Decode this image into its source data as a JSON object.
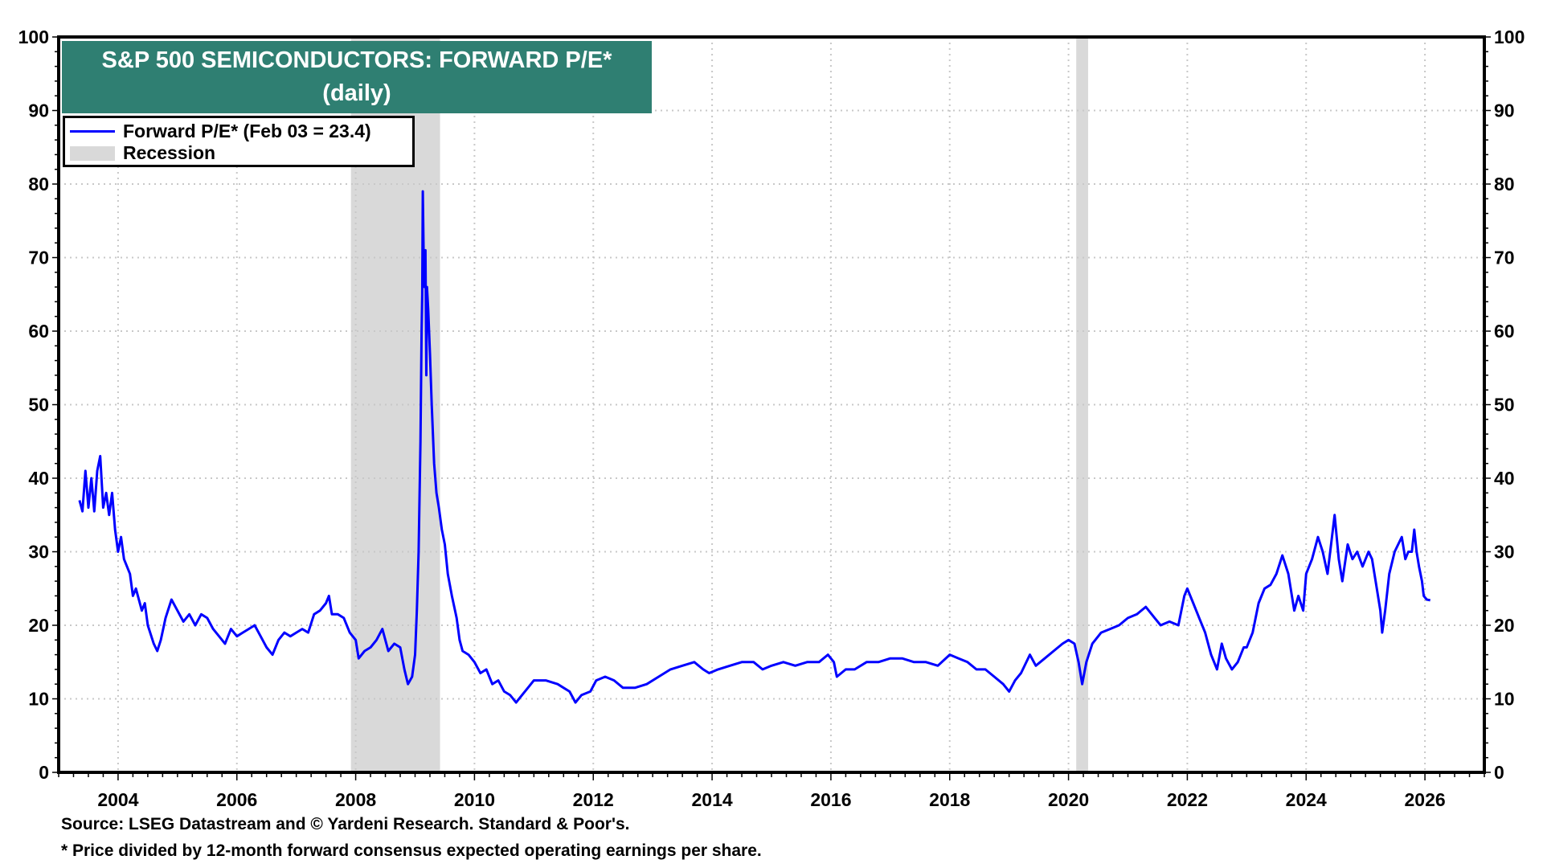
{
  "chart_data": {
    "type": "line",
    "title": "S&P 500 SEMICONDUCTORS: FORWARD P/E*",
    "subtitle": "(daily)",
    "xlabel": "",
    "ylabel": "",
    "xlim": [
      2003.0,
      2027.0
    ],
    "ylim": [
      0,
      100
    ],
    "x_ticks": [
      2004,
      2006,
      2008,
      2010,
      2012,
      2014,
      2016,
      2018,
      2020,
      2022,
      2024,
      2026
    ],
    "x_tick_labels": [
      "2004",
      "2006",
      "2008",
      "2010",
      "2012",
      "2014",
      "2016",
      "2018",
      "2020",
      "2022",
      "2024",
      "2026"
    ],
    "y_ticks": [
      0,
      10,
      20,
      30,
      40,
      50,
      60,
      70,
      80,
      90,
      100
    ],
    "y_tick_labels": [
      "0",
      "10",
      "20",
      "30",
      "40",
      "50",
      "60",
      "70",
      "80",
      "90",
      "100"
    ],
    "grid": true,
    "legend_position": "top-left",
    "legend": [
      {
        "label": "Forward P/E* (Feb 03 = 23.4)",
        "type": "line",
        "color": "#0000ff"
      },
      {
        "label": "Recession",
        "type": "band",
        "color": "#d9d9d9"
      }
    ],
    "recessions": [
      [
        2007.92,
        2009.42
      ],
      [
        2020.13,
        2020.33
      ]
    ],
    "series": [
      {
        "name": "Forward P/E*",
        "color": "#0000ff",
        "points": [
          [
            2003.35,
            37
          ],
          [
            2003.4,
            35.5
          ],
          [
            2003.45,
            41
          ],
          [
            2003.5,
            36
          ],
          [
            2003.55,
            40
          ],
          [
            2003.6,
            35.5
          ],
          [
            2003.65,
            41
          ],
          [
            2003.7,
            43
          ],
          [
            2003.75,
            36
          ],
          [
            2003.8,
            38
          ],
          [
            2003.85,
            35
          ],
          [
            2003.9,
            38
          ],
          [
            2003.95,
            33
          ],
          [
            2004.0,
            30
          ],
          [
            2004.05,
            32
          ],
          [
            2004.1,
            29
          ],
          [
            2004.2,
            27
          ],
          [
            2004.25,
            24
          ],
          [
            2004.3,
            25
          ],
          [
            2004.4,
            22
          ],
          [
            2004.45,
            23
          ],
          [
            2004.5,
            20
          ],
          [
            2004.6,
            17.5
          ],
          [
            2004.66,
            16.5
          ],
          [
            2004.72,
            18
          ],
          [
            2004.8,
            21
          ],
          [
            2004.9,
            23.5
          ],
          [
            2005.0,
            22
          ],
          [
            2005.1,
            20.5
          ],
          [
            2005.2,
            21.5
          ],
          [
            2005.3,
            20
          ],
          [
            2005.4,
            21.5
          ],
          [
            2005.5,
            21
          ],
          [
            2005.6,
            19.5
          ],
          [
            2005.7,
            18.5
          ],
          [
            2005.8,
            17.5
          ],
          [
            2005.9,
            19.5
          ],
          [
            2006.0,
            18.5
          ],
          [
            2006.1,
            19
          ],
          [
            2006.2,
            19.5
          ],
          [
            2006.3,
            20
          ],
          [
            2006.4,
            18.5
          ],
          [
            2006.5,
            17
          ],
          [
            2006.6,
            16
          ],
          [
            2006.7,
            18
          ],
          [
            2006.8,
            19
          ],
          [
            2006.9,
            18.5
          ],
          [
            2007.0,
            19
          ],
          [
            2007.1,
            19.5
          ],
          [
            2007.2,
            19
          ],
          [
            2007.3,
            21.5
          ],
          [
            2007.4,
            22
          ],
          [
            2007.5,
            23
          ],
          [
            2007.55,
            24
          ],
          [
            2007.6,
            21.5
          ],
          [
            2007.7,
            21.5
          ],
          [
            2007.8,
            21
          ],
          [
            2007.9,
            19
          ],
          [
            2008.0,
            18
          ],
          [
            2008.05,
            15.5
          ],
          [
            2008.15,
            16.5
          ],
          [
            2008.25,
            17
          ],
          [
            2008.35,
            18
          ],
          [
            2008.45,
            19.5
          ],
          [
            2008.55,
            16.5
          ],
          [
            2008.65,
            17.5
          ],
          [
            2008.75,
            17
          ],
          [
            2008.82,
            14
          ],
          [
            2008.88,
            12
          ],
          [
            2008.95,
            13
          ],
          [
            2009.0,
            16
          ],
          [
            2009.03,
            22
          ],
          [
            2009.06,
            30
          ],
          [
            2009.09,
            45
          ],
          [
            2009.11,
            60
          ],
          [
            2009.12,
            65
          ],
          [
            2009.13,
            79
          ],
          [
            2009.145,
            70
          ],
          [
            2009.16,
            66
          ],
          [
            2009.175,
            71
          ],
          [
            2009.19,
            54
          ],
          [
            2009.2,
            66
          ],
          [
            2009.22,
            63
          ],
          [
            2009.25,
            57
          ],
          [
            2009.28,
            50
          ],
          [
            2009.32,
            42
          ],
          [
            2009.36,
            38
          ],
          [
            2009.4,
            36
          ],
          [
            2009.45,
            33
          ],
          [
            2009.5,
            31
          ],
          [
            2009.55,
            27
          ],
          [
            2009.62,
            24
          ],
          [
            2009.7,
            21
          ],
          [
            2009.75,
            18
          ],
          [
            2009.8,
            16.5
          ],
          [
            2009.9,
            16
          ],
          [
            2010.0,
            15
          ],
          [
            2010.1,
            13.5
          ],
          [
            2010.2,
            14
          ],
          [
            2010.3,
            12
          ],
          [
            2010.4,
            12.5
          ],
          [
            2010.5,
            11
          ],
          [
            2010.6,
            10.5
          ],
          [
            2010.7,
            9.5
          ],
          [
            2010.8,
            10.5
          ],
          [
            2010.9,
            11.5
          ],
          [
            2011.0,
            12.5
          ],
          [
            2011.2,
            12.5
          ],
          [
            2011.4,
            12
          ],
          [
            2011.5,
            11.5
          ],
          [
            2011.6,
            11
          ],
          [
            2011.7,
            9.5
          ],
          [
            2011.8,
            10.5
          ],
          [
            2011.95,
            11
          ],
          [
            2012.05,
            12.5
          ],
          [
            2012.2,
            13
          ],
          [
            2012.35,
            12.5
          ],
          [
            2012.5,
            11.5
          ],
          [
            2012.7,
            11.5
          ],
          [
            2012.9,
            12
          ],
          [
            2013.1,
            13
          ],
          [
            2013.3,
            14
          ],
          [
            2013.5,
            14.5
          ],
          [
            2013.7,
            15
          ],
          [
            2013.85,
            14
          ],
          [
            2013.95,
            13.5
          ],
          [
            2014.1,
            14
          ],
          [
            2014.3,
            14.5
          ],
          [
            2014.5,
            15
          ],
          [
            2014.7,
            15
          ],
          [
            2014.85,
            14
          ],
          [
            2015.0,
            14.5
          ],
          [
            2015.2,
            15
          ],
          [
            2015.4,
            14.5
          ],
          [
            2015.6,
            15
          ],
          [
            2015.8,
            15
          ],
          [
            2015.95,
            16
          ],
          [
            2016.05,
            15
          ],
          [
            2016.1,
            13
          ],
          [
            2016.25,
            14
          ],
          [
            2016.4,
            14
          ],
          [
            2016.6,
            15
          ],
          [
            2016.8,
            15
          ],
          [
            2017.0,
            15.5
          ],
          [
            2017.2,
            15.5
          ],
          [
            2017.4,
            15
          ],
          [
            2017.6,
            15
          ],
          [
            2017.8,
            14.5
          ],
          [
            2018.0,
            16
          ],
          [
            2018.15,
            15.5
          ],
          [
            2018.3,
            15
          ],
          [
            2018.45,
            14
          ],
          [
            2018.6,
            14
          ],
          [
            2018.75,
            13
          ],
          [
            2018.9,
            12
          ],
          [
            2019.0,
            11
          ],
          [
            2019.1,
            12.5
          ],
          [
            2019.2,
            13.5
          ],
          [
            2019.35,
            16
          ],
          [
            2019.45,
            14.5
          ],
          [
            2019.6,
            15.5
          ],
          [
            2019.75,
            16.5
          ],
          [
            2019.9,
            17.5
          ],
          [
            2020.0,
            18
          ],
          [
            2020.1,
            17.5
          ],
          [
            2020.17,
            15
          ],
          [
            2020.23,
            12
          ],
          [
            2020.3,
            15
          ],
          [
            2020.4,
            17.5
          ],
          [
            2020.55,
            19
          ],
          [
            2020.7,
            19.5
          ],
          [
            2020.85,
            20
          ],
          [
            2021.0,
            21
          ],
          [
            2021.15,
            21.5
          ],
          [
            2021.3,
            22.5
          ],
          [
            2021.45,
            21
          ],
          [
            2021.55,
            20
          ],
          [
            2021.7,
            20.5
          ],
          [
            2021.85,
            20
          ],
          [
            2021.95,
            24
          ],
          [
            2022.0,
            25
          ],
          [
            2022.1,
            23
          ],
          [
            2022.2,
            21
          ],
          [
            2022.3,
            19
          ],
          [
            2022.4,
            16
          ],
          [
            2022.5,
            14
          ],
          [
            2022.58,
            17.5
          ],
          [
            2022.65,
            15.5
          ],
          [
            2022.75,
            14
          ],
          [
            2022.85,
            15
          ],
          [
            2022.95,
            17
          ],
          [
            2023.0,
            17
          ],
          [
            2023.1,
            19
          ],
          [
            2023.2,
            23
          ],
          [
            2023.3,
            25
          ],
          [
            2023.4,
            25.5
          ],
          [
            2023.5,
            27
          ],
          [
            2023.6,
            29.5
          ],
          [
            2023.7,
            27
          ],
          [
            2023.8,
            22
          ],
          [
            2023.87,
            24
          ],
          [
            2023.95,
            22
          ],
          [
            2024.0,
            27
          ],
          [
            2024.1,
            29
          ],
          [
            2024.2,
            32
          ],
          [
            2024.28,
            30
          ],
          [
            2024.36,
            27
          ],
          [
            2024.42,
            31
          ],
          [
            2024.48,
            35
          ],
          [
            2024.55,
            29
          ],
          [
            2024.61,
            26
          ],
          [
            2024.7,
            31
          ],
          [
            2024.78,
            29
          ],
          [
            2024.86,
            30
          ],
          [
            2024.95,
            28
          ],
          [
            2025.05,
            30
          ],
          [
            2025.11,
            29
          ],
          [
            2025.19,
            25
          ],
          [
            2025.25,
            22
          ],
          [
            2025.28,
            19
          ],
          [
            2025.33,
            22
          ],
          [
            2025.4,
            27
          ],
          [
            2025.49,
            30
          ],
          [
            2025.55,
            31
          ],
          [
            2025.61,
            32
          ],
          [
            2025.67,
            29
          ],
          [
            2025.72,
            30
          ],
          [
            2025.78,
            30
          ],
          [
            2025.82,
            33
          ],
          [
            2025.86,
            30
          ],
          [
            2025.9,
            28
          ],
          [
            2025.95,
            26
          ],
          [
            2025.98,
            24
          ],
          [
            2026.03,
            23.5
          ],
          [
            2026.09,
            23.4
          ]
        ]
      }
    ],
    "source_note": "Source: LSEG Datastream and © Yardeni Research. Standard & Poor's.",
    "footnote": "* Price divided by 12-month forward consensus expected operating earnings per share."
  }
}
